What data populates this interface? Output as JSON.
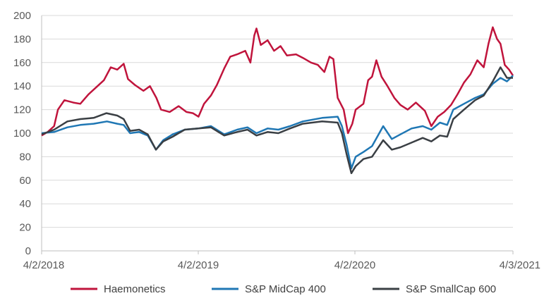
{
  "chart_data": {
    "type": "line",
    "x_axis": {
      "ticks": [
        "4/2/2018",
        "4/2/2019",
        "4/2/2020",
        "4/3/2021"
      ]
    },
    "y_axis": {
      "range": [
        0,
        200
      ],
      "ticks": [
        "0",
        "20",
        "40",
        "60",
        "80",
        "100",
        "120",
        "140",
        "160",
        "180",
        "200"
      ]
    },
    "grid": "horizontal",
    "legend_position": "bottom",
    "colors": {
      "haemonetics": "#c0143c",
      "midcap": "#1f77b4",
      "smallcap": "#3a3f44"
    },
    "series": [
      {
        "name": "Haemonetics",
        "color": "#c0143c",
        "points": [
          [
            "2018-04-02",
            98
          ],
          [
            "2018-04-16",
            101
          ],
          [
            "2018-05-01",
            106
          ],
          [
            "2018-05-10",
            120
          ],
          [
            "2018-05-25",
            128
          ],
          [
            "2018-06-15",
            126
          ],
          [
            "2018-07-01",
            125
          ],
          [
            "2018-07-20",
            133
          ],
          [
            "2018-08-10",
            140
          ],
          [
            "2018-08-25",
            145
          ],
          [
            "2018-09-10",
            156
          ],
          [
            "2018-09-25",
            154
          ],
          [
            "2018-10-10",
            159
          ],
          [
            "2018-10-20",
            146
          ],
          [
            "2018-11-05",
            141
          ],
          [
            "2018-11-25",
            136
          ],
          [
            "2018-12-10",
            140
          ],
          [
            "2018-12-25",
            130
          ],
          [
            "2019-01-05",
            120
          ],
          [
            "2019-01-25",
            118
          ],
          [
            "2019-02-15",
            123
          ],
          [
            "2019-03-05",
            118
          ],
          [
            "2019-03-20",
            117
          ],
          [
            "2019-04-02",
            114
          ],
          [
            "2019-04-15",
            125
          ],
          [
            "2019-05-01",
            132
          ],
          [
            "2019-05-15",
            141
          ],
          [
            "2019-06-01",
            155
          ],
          [
            "2019-06-15",
            165
          ],
          [
            "2019-07-01",
            167
          ],
          [
            "2019-07-20",
            170
          ],
          [
            "2019-08-01",
            160
          ],
          [
            "2019-08-10",
            183
          ],
          [
            "2019-08-15",
            189
          ],
          [
            "2019-08-25",
            175
          ],
          [
            "2019-09-10",
            179
          ],
          [
            "2019-09-25",
            170
          ],
          [
            "2019-10-10",
            174
          ],
          [
            "2019-10-25",
            166
          ],
          [
            "2019-11-15",
            167
          ],
          [
            "2019-12-01",
            164
          ],
          [
            "2019-12-20",
            160
          ],
          [
            "2020-01-05",
            158
          ],
          [
            "2020-01-20",
            152
          ],
          [
            "2020-02-01",
            165
          ],
          [
            "2020-02-10",
            163
          ],
          [
            "2020-02-20",
            130
          ],
          [
            "2020-03-05",
            120
          ],
          [
            "2020-03-15",
            100
          ],
          [
            "2020-03-25",
            108
          ],
          [
            "2020-04-02",
            120
          ],
          [
            "2020-04-20",
            125
          ],
          [
            "2020-05-01",
            145
          ],
          [
            "2020-05-10",
            148
          ],
          [
            "2020-05-20",
            162
          ],
          [
            "2020-06-01",
            148
          ],
          [
            "2020-06-15",
            140
          ],
          [
            "2020-07-01",
            130
          ],
          [
            "2020-07-15",
            124
          ],
          [
            "2020-08-01",
            120
          ],
          [
            "2020-08-20",
            126
          ],
          [
            "2020-09-10",
            119
          ],
          [
            "2020-09-25",
            106
          ],
          [
            "2020-10-10",
            114
          ],
          [
            "2020-10-25",
            118
          ],
          [
            "2020-11-10",
            124
          ],
          [
            "2020-11-25",
            133
          ],
          [
            "2020-12-10",
            143
          ],
          [
            "2020-12-25",
            150
          ],
          [
            "2021-01-10",
            162
          ],
          [
            "2021-01-25",
            156
          ],
          [
            "2021-02-05",
            176
          ],
          [
            "2021-02-15",
            190
          ],
          [
            "2021-02-25",
            180
          ],
          [
            "2021-03-05",
            176
          ],
          [
            "2021-03-15",
            158
          ],
          [
            "2021-03-25",
            154
          ],
          [
            "2021-04-03",
            149
          ]
        ]
      },
      {
        "name": "S&P MidCap 400",
        "color": "#1f77b4",
        "points": [
          [
            "2018-04-02",
            100
          ],
          [
            "2018-05-01",
            101
          ],
          [
            "2018-06-01",
            105
          ],
          [
            "2018-07-01",
            107
          ],
          [
            "2018-08-01",
            108
          ],
          [
            "2018-09-01",
            110
          ],
          [
            "2018-09-25",
            108
          ],
          [
            "2018-10-10",
            107
          ],
          [
            "2018-10-25",
            100
          ],
          [
            "2018-11-15",
            101
          ],
          [
            "2018-12-05",
            98
          ],
          [
            "2018-12-24",
            86
          ],
          [
            "2019-01-10",
            94
          ],
          [
            "2019-02-01",
            99
          ],
          [
            "2019-03-01",
            103
          ],
          [
            "2019-04-02",
            104
          ],
          [
            "2019-05-01",
            106
          ],
          [
            "2019-06-01",
            99
          ],
          [
            "2019-07-01",
            103
          ],
          [
            "2019-07-25",
            105
          ],
          [
            "2019-08-15",
            100
          ],
          [
            "2019-09-10",
            104
          ],
          [
            "2019-10-05",
            103
          ],
          [
            "2019-11-01",
            106
          ],
          [
            "2019-12-01",
            110
          ],
          [
            "2020-01-15",
            113
          ],
          [
            "2020-02-20",
            114
          ],
          [
            "2020-03-01",
            106
          ],
          [
            "2020-03-12",
            90
          ],
          [
            "2020-03-23",
            70
          ],
          [
            "2020-04-02",
            80
          ],
          [
            "2020-04-20",
            84
          ],
          [
            "2020-05-10",
            89
          ],
          [
            "2020-06-05",
            106
          ],
          [
            "2020-06-25",
            95
          ],
          [
            "2020-07-15",
            99
          ],
          [
            "2020-08-10",
            104
          ],
          [
            "2020-09-05",
            106
          ],
          [
            "2020-09-25",
            103
          ],
          [
            "2020-10-15",
            109
          ],
          [
            "2020-11-01",
            107
          ],
          [
            "2020-11-15",
            120
          ],
          [
            "2020-12-10",
            125
          ],
          [
            "2021-01-05",
            130
          ],
          [
            "2021-01-25",
            133
          ],
          [
            "2021-02-15",
            142
          ],
          [
            "2021-03-05",
            147
          ],
          [
            "2021-03-20",
            144
          ],
          [
            "2021-04-03",
            149
          ]
        ]
      },
      {
        "name": "S&P SmallCap 600",
        "color": "#3a3f44",
        "points": [
          [
            "2018-04-02",
            99
          ],
          [
            "2018-05-01",
            103
          ],
          [
            "2018-06-01",
            110
          ],
          [
            "2018-07-01",
            112
          ],
          [
            "2018-08-01",
            113
          ],
          [
            "2018-08-31",
            117
          ],
          [
            "2018-09-25",
            115
          ],
          [
            "2018-10-10",
            112
          ],
          [
            "2018-10-25",
            102
          ],
          [
            "2018-11-15",
            103
          ],
          [
            "2018-12-05",
            99
          ],
          [
            "2018-12-24",
            86
          ],
          [
            "2019-01-10",
            93
          ],
          [
            "2019-02-01",
            97
          ],
          [
            "2019-03-01",
            103
          ],
          [
            "2019-04-02",
            104
          ],
          [
            "2019-05-01",
            105
          ],
          [
            "2019-06-01",
            98
          ],
          [
            "2019-07-01",
            101
          ],
          [
            "2019-07-25",
            103
          ],
          [
            "2019-08-15",
            98
          ],
          [
            "2019-09-10",
            101
          ],
          [
            "2019-10-05",
            100
          ],
          [
            "2019-11-01",
            104
          ],
          [
            "2019-12-01",
            108
          ],
          [
            "2020-01-15",
            110
          ],
          [
            "2020-02-20",
            109
          ],
          [
            "2020-03-01",
            100
          ],
          [
            "2020-03-12",
            82
          ],
          [
            "2020-03-23",
            66
          ],
          [
            "2020-04-02",
            72
          ],
          [
            "2020-04-20",
            78
          ],
          [
            "2020-05-10",
            80
          ],
          [
            "2020-06-05",
            94
          ],
          [
            "2020-06-25",
            86
          ],
          [
            "2020-07-15",
            88
          ],
          [
            "2020-08-10",
            92
          ],
          [
            "2020-09-05",
            96
          ],
          [
            "2020-09-25",
            93
          ],
          [
            "2020-10-15",
            98
          ],
          [
            "2020-11-01",
            97
          ],
          [
            "2020-11-15",
            112
          ],
          [
            "2020-12-10",
            120
          ],
          [
            "2021-01-05",
            128
          ],
          [
            "2021-01-25",
            132
          ],
          [
            "2021-02-15",
            144
          ],
          [
            "2021-03-05",
            156
          ],
          [
            "2021-03-20",
            147
          ],
          [
            "2021-04-03",
            147
          ]
        ]
      }
    ]
  }
}
